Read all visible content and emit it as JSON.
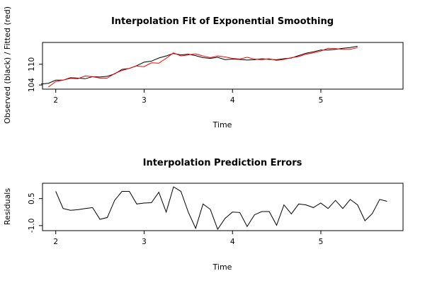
{
  "chart_data": [
    {
      "type": "line",
      "title": "Interpolation Fit of Exponential Smoothing",
      "xlabel": "Time",
      "ylabel": "Observed (black) / Fitted (red)",
      "xlim": [
        1.85,
        5.93
      ],
      "ylim": [
        102.8,
        116.3
      ],
      "x_ticks": [
        2,
        3,
        4,
        5
      ],
      "y_ticks": [
        104,
        110
      ],
      "y_tick_labels": [
        "104",
        "110"
      ],
      "x_start": 1.833,
      "x_step": 0.0833,
      "series": [
        {
          "name": "Observed",
          "color": "#000000",
          "values": [
            104.3,
            104.5,
            105.4,
            105.4,
            106.1,
            106.0,
            105.8,
            106.4,
            106.3,
            106.5,
            107.2,
            108.5,
            108.8,
            109.6,
            110.6,
            110.9,
            111.8,
            112.4,
            113.1,
            112.7,
            112.9,
            112.5,
            111.9,
            111.7,
            112.0,
            111.3,
            111.5,
            111.4,
            111.2,
            111.3,
            111.6,
            111.4,
            111.3,
            111.6,
            111.8,
            112.5,
            113.2,
            113.6,
            114.1,
            114.1,
            114.3,
            114.6,
            114.8,
            115.2
          ]
        },
        {
          "name": "Fitted",
          "color": "#ff0000",
          "values": [
            null,
            103.4,
            105.0,
            105.4,
            105.9,
            105.8,
            106.6,
            106.4,
            106.0,
            106.0,
            107.3,
            108.2,
            108.8,
            109.5,
            109.3,
            110.4,
            110.3,
            111.7,
            113.3,
            112.4,
            112.7,
            113.0,
            112.4,
            111.9,
            112.4,
            112.1,
            111.7,
            111.5,
            112.0,
            111.5,
            111.3,
            111.6,
            111.1,
            111.4,
            111.9,
            112.2,
            112.9,
            113.3,
            113.8,
            114.6,
            114.5,
            114.3,
            114.3,
            114.8
          ]
        }
      ]
    },
    {
      "type": "line",
      "title": "Interpolation Prediction Errors",
      "xlabel": "Time",
      "ylabel": "Residuals",
      "xlim": [
        1.85,
        5.93
      ],
      "ylim": [
        -1.28,
        1.35
      ],
      "x_ticks": [
        2,
        3,
        4,
        5
      ],
      "y_ticks": [
        -1.0,
        0.5
      ],
      "y_tick_labels": [
        "-1.0",
        "0.5"
      ],
      "x_start": 2.0,
      "x_step": 0.0833,
      "series": [
        {
          "name": "Residuals",
          "color": "#000000",
          "values": [
            0.9,
            -0.05,
            -0.15,
            -0.12,
            -0.05,
            0.0,
            -0.65,
            -0.55,
            0.4,
            0.9,
            0.9,
            0.2,
            0.25,
            0.27,
            0.85,
            -0.25,
            1.15,
            0.9,
            -0.25,
            -1.15,
            0.2,
            -0.1,
            -1.2,
            -0.6,
            -0.25,
            -0.27,
            -1.05,
            -0.4,
            -0.22,
            -0.22,
            -0.98,
            0.15,
            -0.35,
            0.2,
            0.15,
            0.0,
            0.25,
            -0.05,
            0.4,
            -0.05,
            0.45,
            0.15,
            -0.73,
            -0.33,
            0.45,
            0.35
          ]
        }
      ]
    }
  ]
}
